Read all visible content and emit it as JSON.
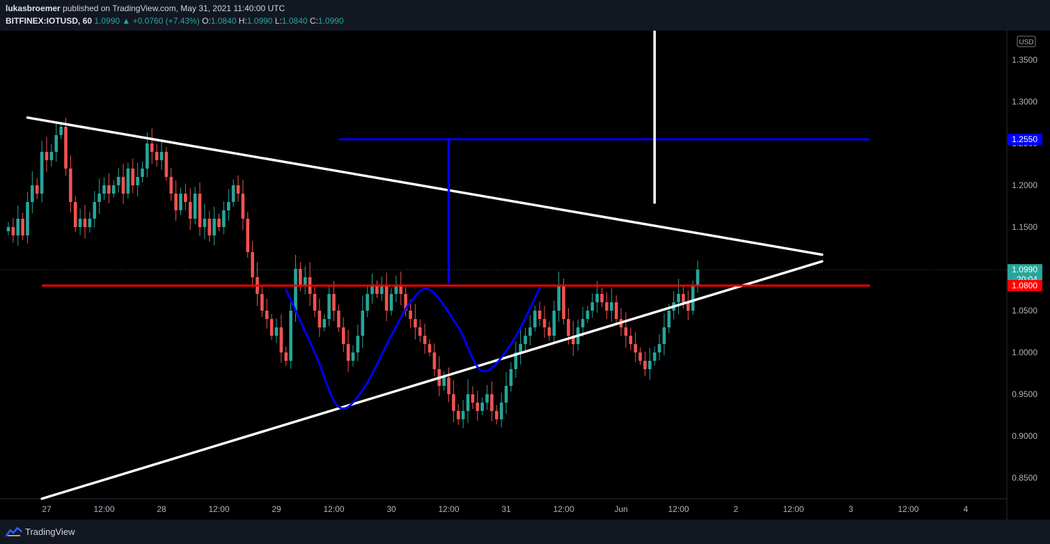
{
  "header": {
    "author": "lukasbroemer",
    "published_text": "published on TradingView.com, May 31, 2021 11:40:00 UTC",
    "symbol": "BITFINEX:IOTUSD, 60",
    "last_price": "1.0990",
    "change_arrow": "▲",
    "change": "+0.0760 (+7.43%)",
    "o_label": "O:",
    "o_value": "1.0840",
    "h_label": "H:",
    "h_value": "1.0990",
    "l_label": "L:",
    "l_value": "1.0840",
    "c_label": "C:",
    "c_value": "1.0990"
  },
  "footer": {
    "logo_text": "TradingView"
  },
  "colors": {
    "background": "#000000",
    "up": "#26a69a",
    "down": "#ef5350",
    "trendline": "#ffffff",
    "resistance": "#ff0000",
    "target": "#0000ff",
    "axis_text": "#b2b5be"
  },
  "chart_data": {
    "type": "candlestick",
    "symbol": "BITFINEX:IOTUSD",
    "interval": "60",
    "currency": "USD",
    "ylim": [
      0.825,
      1.385
    ],
    "y_ticks": [
      "1.3500",
      "1.3000",
      "1.2500",
      "1.2000",
      "1.1500",
      "1.1000",
      "1.0500",
      "1.0000",
      "0.9500",
      "0.9000",
      "0.8500"
    ],
    "x_ticks": [
      "27",
      "12:00",
      "28",
      "12:00",
      "29",
      "12:00",
      "30",
      "12:00",
      "31",
      "12:00",
      "Jun",
      "12:00",
      "2",
      "12:00",
      "3",
      "12:00",
      "4"
    ],
    "x_tick_hours": [
      0,
      12,
      24,
      36,
      48,
      60,
      72,
      84,
      96,
      108,
      120,
      132,
      144,
      156,
      168,
      180,
      192
    ],
    "price_labels": [
      {
        "value": 1.255,
        "text": "1.2550",
        "color": "#0000ff"
      },
      {
        "value": 1.099,
        "text": "1.0990",
        "sub": "20:04",
        "color": "#26a69a"
      },
      {
        "value": 1.08,
        "text": "1.0800",
        "color": "#ff0000"
      }
    ],
    "candles_close": [
      1.15,
      1.14,
      1.16,
      1.14,
      1.18,
      1.2,
      1.19,
      1.24,
      1.23,
      1.24,
      1.26,
      1.27,
      1.22,
      1.18,
      1.15,
      1.16,
      1.15,
      1.16,
      1.18,
      1.19,
      1.2,
      1.19,
      1.2,
      1.21,
      1.19,
      1.22,
      1.2,
      1.21,
      1.22,
      1.25,
      1.24,
      1.23,
      1.24,
      1.21,
      1.19,
      1.17,
      1.19,
      1.18,
      1.16,
      1.19,
      1.15,
      1.16,
      1.14,
      1.16,
      1.15,
      1.17,
      1.18,
      1.2,
      1.19,
      1.16,
      1.12,
      1.09,
      1.07,
      1.05,
      1.04,
      1.02,
      1.03,
      1.0,
      0.99,
      1.05,
      1.1,
      1.08,
      1.09,
      1.07,
      1.05,
      1.03,
      1.04,
      1.07,
      1.05,
      1.03,
      1.01,
      0.99,
      1.0,
      1.02,
      1.05,
      1.07,
      1.08,
      1.07,
      1.08,
      1.05,
      1.07,
      1.08,
      1.07,
      1.05,
      1.04,
      1.03,
      1.02,
      1.01,
      1.0,
      0.98,
      0.96,
      0.97,
      0.95,
      0.93,
      0.92,
      0.93,
      0.95,
      0.94,
      0.93,
      0.94,
      0.95,
      0.93,
      0.92,
      0.94,
      0.96,
      0.98,
      1.0,
      1.01,
      1.02,
      1.03,
      1.05,
      1.04,
      1.03,
      1.02,
      1.05,
      1.08,
      1.04,
      1.02,
      1.01,
      1.03,
      1.04,
      1.05,
      1.06,
      1.07,
      1.06,
      1.05,
      1.06,
      1.04,
      1.03,
      1.02,
      1.01,
      1.0,
      0.99,
      0.98,
      0.99,
      1.0,
      1.01,
      1.03,
      1.05,
      1.06,
      1.07,
      1.06,
      1.05,
      1.08,
      1.099
    ],
    "drawings": [
      {
        "kind": "trendline",
        "color": "white",
        "from": {
          "hour": -4,
          "price": 1.281
        },
        "to": {
          "hour": 162,
          "price": 1.117
        }
      },
      {
        "kind": "trendline",
        "color": "white",
        "from": {
          "hour": -1,
          "price": 0.825
        },
        "to": {
          "hour": 162,
          "price": 1.109
        }
      },
      {
        "kind": "horizontal",
        "color": "red",
        "price": 1.08,
        "from_hour": -1,
        "to_hour": 172
      },
      {
        "kind": "horizontal",
        "color": "blue",
        "price": 1.255,
        "from_hour": 61,
        "to_hour": 172
      },
      {
        "kind": "vertical",
        "color": "blue",
        "hour": 84,
        "from_price": 1.255,
        "to_price": 1.083
      },
      {
        "kind": "vertical",
        "color": "white",
        "hour": 127,
        "from_price": 1.385,
        "to_price": 1.178
      }
    ],
    "pattern_curve": [
      {
        "hour": 50,
        "price": 1.075
      },
      {
        "hour": 56,
        "price": 1.0
      },
      {
        "hour": 61,
        "price": 0.935
      },
      {
        "hour": 66,
        "price": 0.955
      },
      {
        "hour": 72,
        "price": 1.02
      },
      {
        "hour": 76,
        "price": 1.06
      },
      {
        "hour": 80,
        "price": 1.075
      },
      {
        "hour": 86,
        "price": 1.03
      },
      {
        "hour": 91,
        "price": 0.978
      },
      {
        "hour": 97,
        "price": 1.01
      },
      {
        "hour": 103,
        "price": 1.077
      }
    ]
  }
}
